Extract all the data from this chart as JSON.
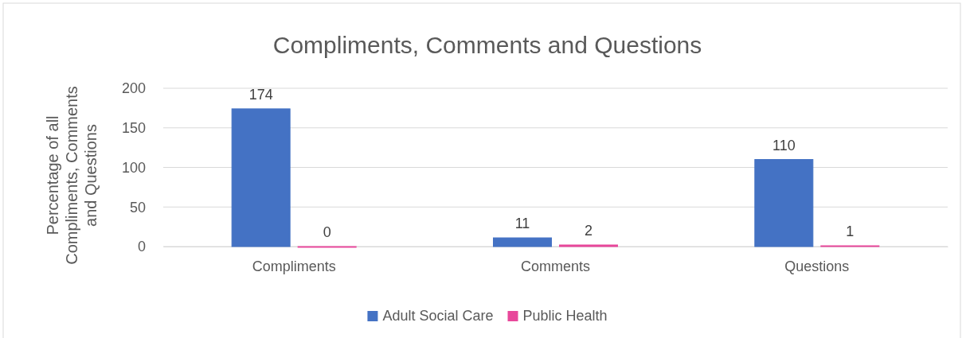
{
  "chart_data": {
    "type": "bar",
    "title": "Compliments, Comments and Questions",
    "ylabel": "Percentage of all Compliments, Comments and Questions",
    "categories": [
      "Compliments",
      "Comments",
      "Questions"
    ],
    "series": [
      {
        "name": "Adult Social Care",
        "color": "#4472c4",
        "values": [
          174,
          11,
          110
        ]
      },
      {
        "name": "Public Health",
        "color": "#e8489b",
        "values": [
          0,
          2,
          1
        ]
      }
    ],
    "ylim": [
      0,
      200
    ],
    "yticks": [
      0,
      50,
      100,
      150,
      200
    ],
    "grid": "y",
    "legend": "bottom",
    "data_labels": true
  }
}
